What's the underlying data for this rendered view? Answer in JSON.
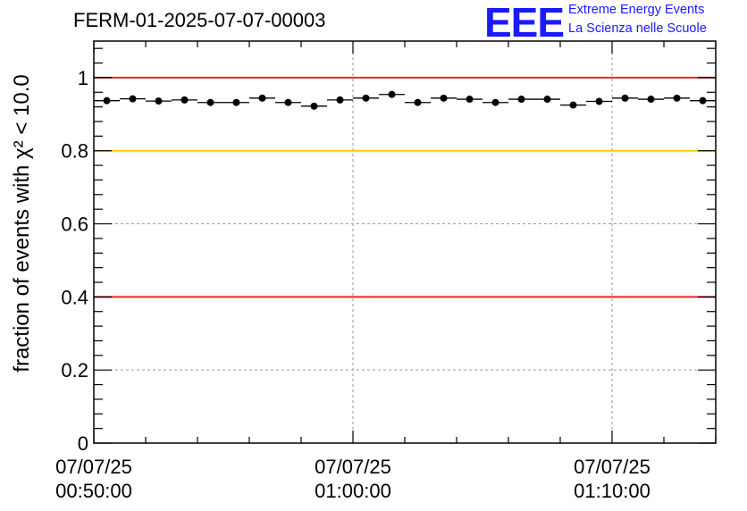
{
  "title": "FERM-01-2025-07-07-00003",
  "logo": {
    "mark": "EEE",
    "line1": "Extreme Energy Events",
    "line2": "La Scienza nelle Scuole"
  },
  "colors": {
    "red_line": "#e8282b",
    "yellow_line": "#ffcc00",
    "markers": "#000000",
    "logo": "#1a1aff"
  },
  "chart_data": {
    "type": "scatter",
    "title": "FERM-01-2025-07-07-00003",
    "ylabel": "fraction of events with χ² < 10.0",
    "xlabel": "",
    "xlim_minutes": [
      0,
      24
    ],
    "ylim": [
      0,
      1.1
    ],
    "y_ticks": [
      0,
      0.2,
      0.4,
      0.6,
      0.8,
      1
    ],
    "y_tick_labels": [
      "0",
      "0.2",
      "0.4",
      "0.6",
      "0.8",
      "1"
    ],
    "x_ticks_minutes": [
      0,
      10,
      20
    ],
    "x_tick_labels": [
      [
        "07/07/25",
        "00:50:00"
      ],
      [
        "07/07/25",
        "01:00:00"
      ],
      [
        "07/07/25",
        "01:10:00"
      ]
    ],
    "grid": true,
    "reference_lines": [
      {
        "y": 1.0,
        "color": "#e8282b"
      },
      {
        "y": 0.8,
        "color": "#ffcc00"
      },
      {
        "y": 0.4,
        "color": "#e8282b"
      }
    ],
    "bin_width_minutes": 1,
    "x_minutes": [
      0.5,
      1.5,
      2.5,
      3.5,
      4.5,
      5.5,
      6.5,
      7.5,
      8.5,
      9.5,
      10.5,
      11.5,
      12.5,
      13.5,
      14.5,
      15.5,
      16.5,
      17.5,
      18.5,
      19.5,
      20.5,
      21.5,
      22.5,
      23.5
    ],
    "values": [
      0.937,
      0.942,
      0.936,
      0.939,
      0.932,
      0.932,
      0.944,
      0.932,
      0.922,
      0.939,
      0.944,
      0.954,
      0.932,
      0.944,
      0.941,
      0.932,
      0.941,
      0.941,
      0.925,
      0.935,
      0.944,
      0.941,
      0.944,
      0.937
    ]
  }
}
